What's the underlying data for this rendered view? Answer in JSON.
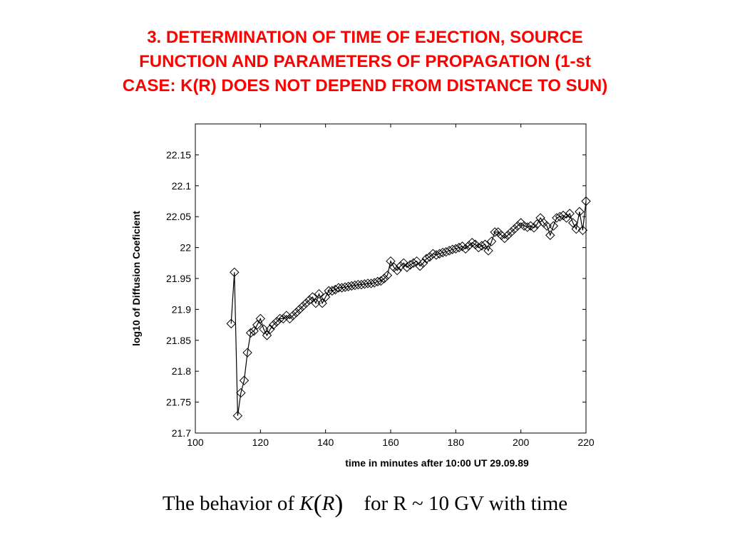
{
  "title_lines": [
    "3. DETERMINATION OF TIME OF EJECTION, SOURCE",
    "FUNCTION AND PARAMETERS OF PROPAGATION (1-st",
    "CASE: K(R) DOES NOT DEPEND FROM DISTANCE TO SUN)"
  ],
  "caption": {
    "prefix": "The behavior of ",
    "math_k": "K",
    "paren_open": "(",
    "math_r": "R",
    "paren_close": ")",
    "suffix": "for R ~ 10 GV with time"
  },
  "colors": {
    "title": "#ff0000",
    "series": "#000000"
  },
  "chart_data": {
    "type": "line",
    "title": "",
    "xlabel": "time in minutes after 10:00 UT 29.09.89",
    "ylabel": "log10 of Diffusion Coeficient",
    "xlim": [
      100,
      220
    ],
    "ylim": [
      21.7,
      22.2
    ],
    "xticks": [
      100,
      120,
      140,
      160,
      180,
      200,
      220
    ],
    "yticks": [
      21.7,
      21.75,
      21.8,
      21.85,
      21.9,
      21.95,
      22,
      22.05,
      22.1,
      22.15
    ],
    "ytick_labels": [
      "21.7",
      "21.75",
      "21.8",
      "21.85",
      "21.9",
      "21.95",
      "22",
      "22.05",
      "22.1",
      "22.15"
    ],
    "marker": "diamond",
    "grid": false,
    "series": [
      {
        "name": "K(R)",
        "x": [
          111,
          112,
          113,
          114,
          115,
          116,
          117,
          118,
          119,
          120,
          121,
          122,
          123,
          124,
          125,
          126,
          127,
          128,
          129,
          130,
          131,
          132,
          133,
          134,
          135,
          136,
          137,
          138,
          139,
          140,
          141,
          142,
          143,
          144,
          145,
          146,
          147,
          148,
          149,
          150,
          151,
          152,
          153,
          154,
          155,
          156,
          157,
          158,
          159,
          160,
          161,
          162,
          163,
          164,
          165,
          166,
          167,
          168,
          169,
          170,
          171,
          172,
          173,
          174,
          175,
          176,
          177,
          178,
          179,
          180,
          181,
          182,
          183,
          184,
          185,
          186,
          187,
          188,
          189,
          190,
          191,
          192,
          193,
          194,
          195,
          196,
          197,
          198,
          199,
          200,
          201,
          202,
          203,
          204,
          205,
          206,
          207,
          208,
          209,
          210,
          211,
          212,
          213,
          214,
          215,
          216,
          217,
          218,
          219,
          220
        ],
        "y": [
          21.877,
          21.96,
          21.728,
          21.765,
          21.785,
          21.83,
          21.862,
          21.865,
          21.875,
          21.885,
          21.868,
          21.858,
          21.868,
          21.875,
          21.88,
          21.885,
          21.885,
          21.89,
          21.885,
          21.89,
          21.895,
          21.9,
          21.905,
          21.91,
          21.915,
          21.92,
          21.91,
          21.925,
          21.91,
          21.92,
          21.93,
          21.93,
          21.932,
          21.935,
          21.935,
          21.936,
          21.937,
          21.938,
          21.939,
          21.94,
          21.94,
          21.941,
          21.942,
          21.942,
          21.943,
          21.945,
          21.946,
          21.95,
          21.955,
          21.978,
          21.968,
          21.963,
          21.97,
          21.975,
          21.968,
          21.972,
          21.975,
          21.978,
          21.97,
          21.975,
          21.982,
          21.985,
          21.99,
          21.988,
          21.99,
          21.992,
          21.993,
          21.995,
          21.997,
          21.998,
          22.0,
          22.002,
          21.998,
          22.003,
          22.008,
          22.005,
          22.0,
          22.003,
          22.005,
          21.995,
          22.01,
          22.025,
          22.025,
          22.02,
          22.015,
          22.02,
          22.025,
          22.03,
          22.035,
          22.04,
          22.035,
          22.033,
          22.035,
          22.032,
          22.038,
          22.048,
          22.04,
          22.035,
          22.02,
          22.035,
          22.048,
          22.05,
          22.052,
          22.048,
          22.055,
          22.04,
          22.03,
          22.058,
          22.028,
          22.075
        ]
      }
    ]
  }
}
